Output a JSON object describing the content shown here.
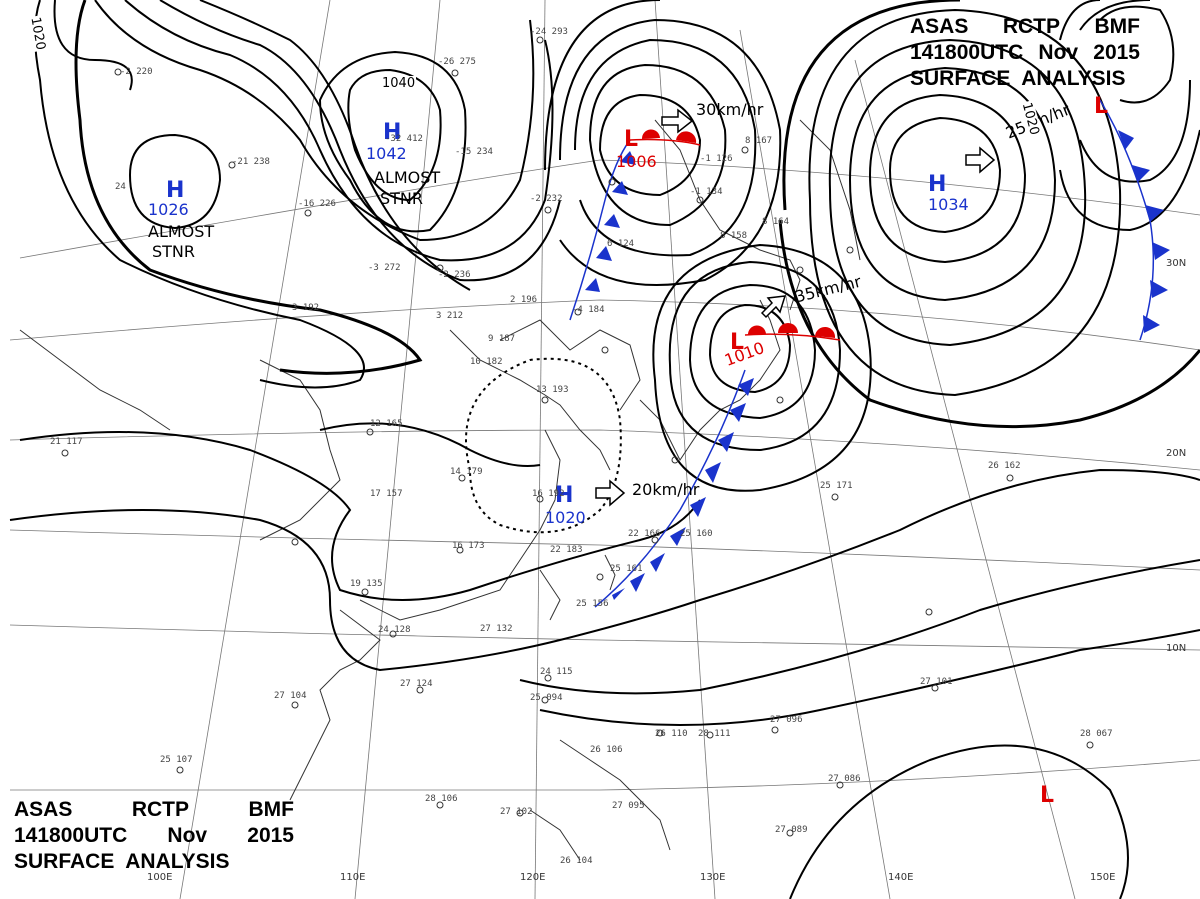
{
  "header": {
    "line1": [
      "ASAS",
      "RCTP",
      "BMF"
    ],
    "line2": [
      "141800UTC",
      "Nov",
      "2015"
    ],
    "line3": "SURFACE  ANALYSIS"
  },
  "systems": {
    "h1": {
      "symbol": "H",
      "pressure": "1026",
      "note1": "ALMOST",
      "note2": "STNR"
    },
    "h2": {
      "symbol": "H",
      "pressure": "1042",
      "note1": "ALMOST",
      "note2": "STNR"
    },
    "h3": {
      "symbol": "H",
      "pressure": "1020",
      "motion": "20km/hr"
    },
    "h4": {
      "symbol": "H",
      "pressure": "1034",
      "motion": "25km/hr"
    },
    "l1": {
      "symbol": "L",
      "pressure": "1006",
      "motion": "30km/hr"
    },
    "l2": {
      "symbol": "L",
      "pressure": "1010",
      "motion": "35km/hr"
    },
    "l3": {
      "symbol": "L"
    },
    "l4": {
      "symbol": "L"
    }
  },
  "isobar_labels": [
    "1020",
    "1040",
    "1020"
  ],
  "longitudes": [
    "100E",
    "110E",
    "120E",
    "130E",
    "140E",
    "150E"
  ],
  "latitudes": [
    "30N",
    "20N",
    "10N"
  ],
  "stations": [
    {
      "t": "220",
      "s": "-2"
    },
    {
      "t": "293",
      "s": "-24"
    },
    {
      "t": "275",
      "s": "-26"
    },
    {
      "t": "412",
      "s": "-32"
    },
    {
      "t": "238",
      "s": "-21"
    },
    {
      "t": "24",
      "s": ""
    },
    {
      "t": "234",
      "s": "-15"
    },
    {
      "t": "226",
      "s": "-16"
    },
    {
      "t": "272",
      "s": "-3"
    },
    {
      "t": "236",
      "s": "-2"
    },
    {
      "t": "232",
      "s": "-2"
    },
    {
      "t": "196",
      "s": "2"
    },
    {
      "t": "184",
      "s": "-4"
    },
    {
      "t": "124",
      "s": "6"
    },
    {
      "t": "126",
      "s": "-1"
    },
    {
      "t": "134",
      "s": "-1"
    },
    {
      "t": "158",
      "s": "8"
    },
    {
      "t": "164",
      "s": "8"
    },
    {
      "t": "167",
      "s": "8"
    },
    {
      "t": "192",
      "s": "3"
    },
    {
      "t": "212",
      "s": "3"
    },
    {
      "t": "187",
      "s": "9"
    },
    {
      "t": "182",
      "s": "10"
    },
    {
      "t": "193",
      "s": "13"
    },
    {
      "t": "165",
      "s": "12"
    },
    {
      "t": "179",
      "s": "14"
    },
    {
      "t": "192",
      "s": "16"
    },
    {
      "t": "157",
      "s": "17"
    },
    {
      "t": "173",
      "s": "16"
    },
    {
      "t": "183",
      "s": "22"
    },
    {
      "t": "166",
      "s": "22"
    },
    {
      "t": "160",
      "s": "25"
    },
    {
      "t": "161",
      "s": "25"
    },
    {
      "t": "156",
      "s": "25"
    },
    {
      "t": "135",
      "s": "19"
    },
    {
      "t": "128",
      "s": "24"
    },
    {
      "t": "132",
      "s": "27"
    },
    {
      "t": "124",
      "s": "27"
    },
    {
      "t": "104",
      "s": "27"
    },
    {
      "t": "115",
      "s": "24"
    },
    {
      "t": "094",
      "s": "25"
    },
    {
      "t": "110",
      "s": "26"
    },
    {
      "t": "111",
      "s": "28"
    },
    {
      "t": "106",
      "s": "26"
    },
    {
      "t": "096",
      "s": "27"
    },
    {
      "t": "101",
      "s": "27"
    },
    {
      "t": "067",
      "s": "28"
    },
    {
      "t": "086",
      "s": "27"
    },
    {
      "t": "089",
      "s": "27"
    },
    {
      "t": "106",
      "s": "28"
    },
    {
      "t": "102",
      "s": "27"
    },
    {
      "t": "095",
      "s": "27"
    },
    {
      "t": "104",
      "s": "26"
    },
    {
      "t": "107",
      "s": "25"
    },
    {
      "t": "162",
      "s": "26"
    },
    {
      "t": "171",
      "s": "25"
    },
    {
      "t": "117",
      "s": "21"
    }
  ],
  "colors": {
    "high": "#1a33cc",
    "low": "#dd0000",
    "cold_front": "#1a33cc",
    "warm_front": "#dd0000",
    "isobar": "#000000"
  }
}
